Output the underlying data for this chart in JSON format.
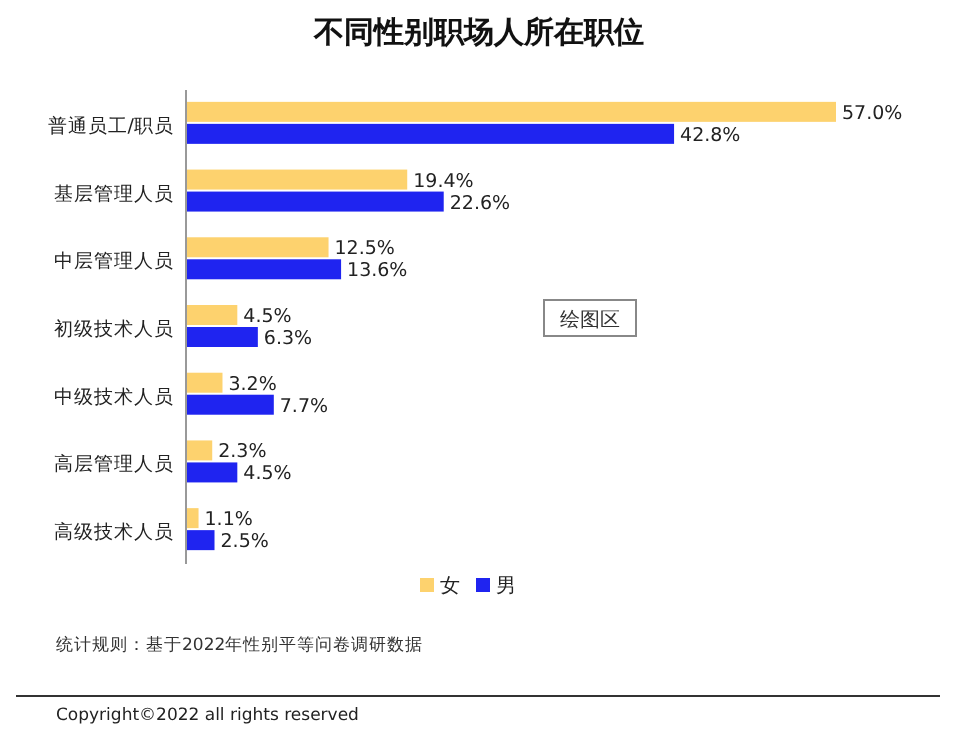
{
  "chart_data": {
    "type": "bar",
    "orientation": "horizontal",
    "title": "不同性别职场人所在职位",
    "categories": [
      "普通员工/职员",
      "基层管理人员",
      "中层管理人员",
      "初级技术人员",
      "中级技术人员",
      "高层管理人员",
      "高级技术人员"
    ],
    "series": [
      {
        "name": "女",
        "color": "#fdd26e",
        "values": [
          57.0,
          19.4,
          12.5,
          4.5,
          3.2,
          2.3,
          1.1
        ],
        "value_labels": [
          "57.0%",
          "19.4%",
          "12.5%",
          "4.5%",
          "3.2%",
          "2.3%",
          "1.1%"
        ]
      },
      {
        "name": "男",
        "color": "#1f24f0",
        "values": [
          42.8,
          22.6,
          13.6,
          6.3,
          7.7,
          4.5,
          2.5
        ],
        "value_labels": [
          "42.8%",
          "22.6%",
          "13.6%",
          "6.3%",
          "7.7%",
          "4.5%",
          "2.5%"
        ]
      }
    ],
    "legend": "bottom",
    "annotations": [
      "绘图区",
      "统计规则：基于2022年性别平等问卷调研数据",
      "Copyright©2022 all rights reserved"
    ]
  }
}
